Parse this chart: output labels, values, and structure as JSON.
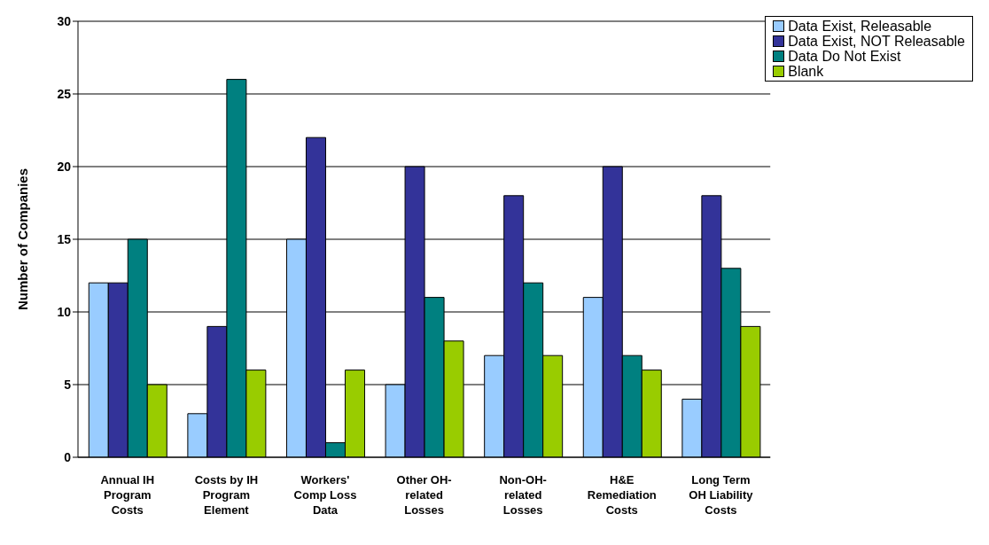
{
  "chart_data": {
    "type": "bar",
    "ylabel": "Number of Companies",
    "categories": [
      "Annual IH Program Costs",
      "Costs by IH Program Element",
      "Workers' Comp Loss Data",
      "Other OH-related Losses",
      "Non-OH-related Losses",
      "H&E Remediation Costs",
      "Long Term OH Liability Costs"
    ],
    "series": [
      {
        "name": "Data Exist, Releasable",
        "color": "#99ccff",
        "values": [
          12,
          3,
          15,
          5,
          7,
          11,
          4
        ]
      },
      {
        "name": "Data Exist, NOT Releasable",
        "color": "#333399",
        "values": [
          12,
          9,
          22,
          20,
          18,
          20,
          18
        ]
      },
      {
        "name": "Data Do Not Exist",
        "color": "#008080",
        "values": [
          15,
          26,
          1,
          11,
          12,
          7,
          13
        ]
      },
      {
        "name": "Blank",
        "color": "#99cc00",
        "values": [
          5,
          6,
          6,
          8,
          7,
          6,
          9
        ]
      }
    ],
    "ylim": [
      0,
      30
    ],
    "yticks": [
      0,
      5,
      10,
      15,
      20,
      25,
      30
    ],
    "grid": "y",
    "legend": "top right"
  }
}
